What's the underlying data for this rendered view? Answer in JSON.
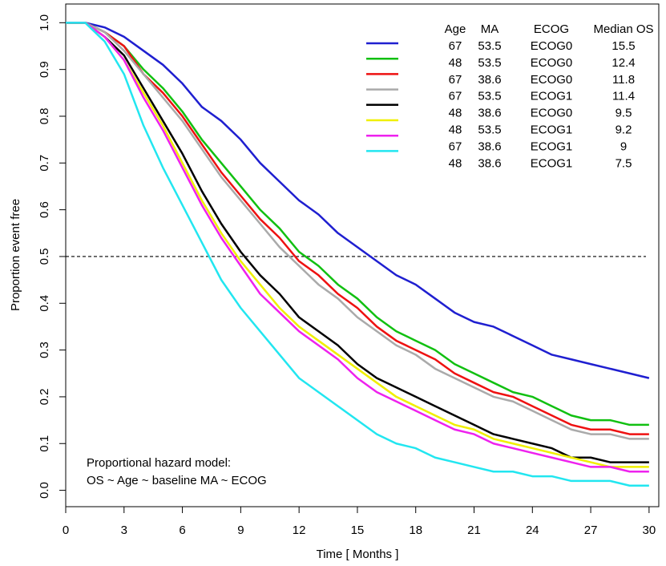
{
  "chart_data": {
    "type": "line",
    "x_label": "Time [ Months ]",
    "y_label": "Proportion event free",
    "annotation": [
      "Proportional hazard model:",
      "OS ~ Age ~ baseline MA ~ ECOG"
    ],
    "hline": 0.5,
    "xlim": [
      0,
      30.5
    ],
    "ylim": [
      -0.035,
      1.04
    ],
    "xticks": [
      0,
      3,
      6,
      9,
      12,
      15,
      18,
      21,
      24,
      27,
      30
    ],
    "yticks": [
      {
        "value": 0,
        "label": "0.0"
      },
      0.1,
      0.2,
      0.3,
      0.4,
      0.5,
      0.6,
      0.7,
      0.8,
      0.9,
      {
        "value": 1,
        "label": "1.0"
      }
    ],
    "x": [
      0,
      1,
      2,
      3,
      4,
      5,
      6,
      7,
      8,
      9,
      10,
      11,
      12,
      13,
      14,
      15,
      16,
      17,
      18,
      19,
      20,
      21,
      22,
      23,
      24,
      25,
      26,
      27,
      28,
      29,
      30
    ],
    "series": [
      {
        "color": "#1f1fd0",
        "values": [
          1,
          1,
          0.99,
          0.97,
          0.94,
          0.91,
          0.87,
          0.82,
          0.79,
          0.75,
          0.7,
          0.66,
          0.62,
          0.59,
          0.55,
          0.52,
          0.49,
          0.46,
          0.44,
          0.41,
          0.38,
          0.36,
          0.35,
          0.33,
          0.31,
          0.29,
          0.28,
          0.27,
          0.26,
          0.25,
          0.24
        ]
      },
      {
        "color": "#11c011",
        "values": [
          1,
          1,
          0.98,
          0.95,
          0.9,
          0.86,
          0.81,
          0.75,
          0.7,
          0.65,
          0.6,
          0.56,
          0.51,
          0.48,
          0.44,
          0.41,
          0.37,
          0.34,
          0.32,
          0.3,
          0.27,
          0.25,
          0.23,
          0.21,
          0.2,
          0.18,
          0.16,
          0.15,
          0.15,
          0.14,
          0.14
        ]
      },
      {
        "color": "#ee1111",
        "values": [
          1,
          1,
          0.98,
          0.95,
          0.89,
          0.85,
          0.8,
          0.74,
          0.68,
          0.63,
          0.58,
          0.54,
          0.49,
          0.46,
          0.42,
          0.39,
          0.35,
          0.32,
          0.3,
          0.28,
          0.25,
          0.23,
          0.21,
          0.2,
          0.18,
          0.16,
          0.14,
          0.13,
          0.13,
          0.12,
          0.12
        ]
      },
      {
        "color": "#aaaaaa",
        "values": [
          1,
          1,
          0.98,
          0.94,
          0.89,
          0.84,
          0.79,
          0.73,
          0.67,
          0.62,
          0.57,
          0.52,
          0.48,
          0.44,
          0.41,
          0.37,
          0.34,
          0.31,
          0.29,
          0.26,
          0.24,
          0.22,
          0.2,
          0.19,
          0.17,
          0.15,
          0.13,
          0.12,
          0.12,
          0.11,
          0.11
        ]
      },
      {
        "color": "#000000",
        "values": [
          1,
          1,
          0.97,
          0.93,
          0.86,
          0.79,
          0.72,
          0.64,
          0.57,
          0.51,
          0.46,
          0.42,
          0.37,
          0.34,
          0.31,
          0.27,
          0.24,
          0.22,
          0.2,
          0.18,
          0.16,
          0.14,
          0.12,
          0.11,
          0.1,
          0.09,
          0.07,
          0.07,
          0.06,
          0.06,
          0.06
        ]
      },
      {
        "color": "#f0f000",
        "values": [
          1,
          1,
          0.97,
          0.92,
          0.85,
          0.78,
          0.7,
          0.62,
          0.55,
          0.49,
          0.44,
          0.39,
          0.35,
          0.32,
          0.29,
          0.26,
          0.23,
          0.2,
          0.18,
          0.16,
          0.14,
          0.13,
          0.11,
          0.1,
          0.09,
          0.08,
          0.07,
          0.06,
          0.05,
          0.05,
          0.05
        ]
      },
      {
        "color": "#ee22ee",
        "values": [
          1,
          1,
          0.97,
          0.92,
          0.84,
          0.77,
          0.69,
          0.61,
          0.54,
          0.48,
          0.42,
          0.38,
          0.34,
          0.31,
          0.28,
          0.24,
          0.21,
          0.19,
          0.17,
          0.15,
          0.13,
          0.12,
          0.1,
          0.09,
          0.08,
          0.07,
          0.06,
          0.05,
          0.05,
          0.04,
          0.04
        ]
      },
      {
        "color": "#22e6f0",
        "values": [
          1,
          1,
          0.96,
          0.89,
          0.78,
          0.69,
          0.61,
          0.53,
          0.45,
          0.39,
          0.34,
          0.29,
          0.24,
          0.21,
          0.18,
          0.15,
          0.12,
          0.1,
          0.09,
          0.07,
          0.06,
          0.05,
          0.04,
          0.04,
          0.03,
          0.03,
          0.02,
          0.02,
          0.02,
          0.01,
          0.01
        ]
      }
    ],
    "legend_table": {
      "header": [
        "Age",
        "MA",
        "ECOG",
        "Median OS"
      ],
      "rows": [
        [
          67,
          53.5,
          "ECOG0",
          15.5
        ],
        [
          48,
          53.5,
          "ECOG0",
          12.4
        ],
        [
          67,
          38.6,
          "ECOG0",
          11.8
        ],
        [
          67,
          53.5,
          "ECOG1",
          11.4
        ],
        [
          48,
          38.6,
          "ECOG0",
          9.5
        ],
        [
          48,
          53.5,
          "ECOG1",
          9.2
        ],
        [
          67,
          38.6,
          "ECOG1",
          9
        ],
        [
          48,
          38.6,
          "ECOG1",
          7.5
        ]
      ]
    }
  }
}
